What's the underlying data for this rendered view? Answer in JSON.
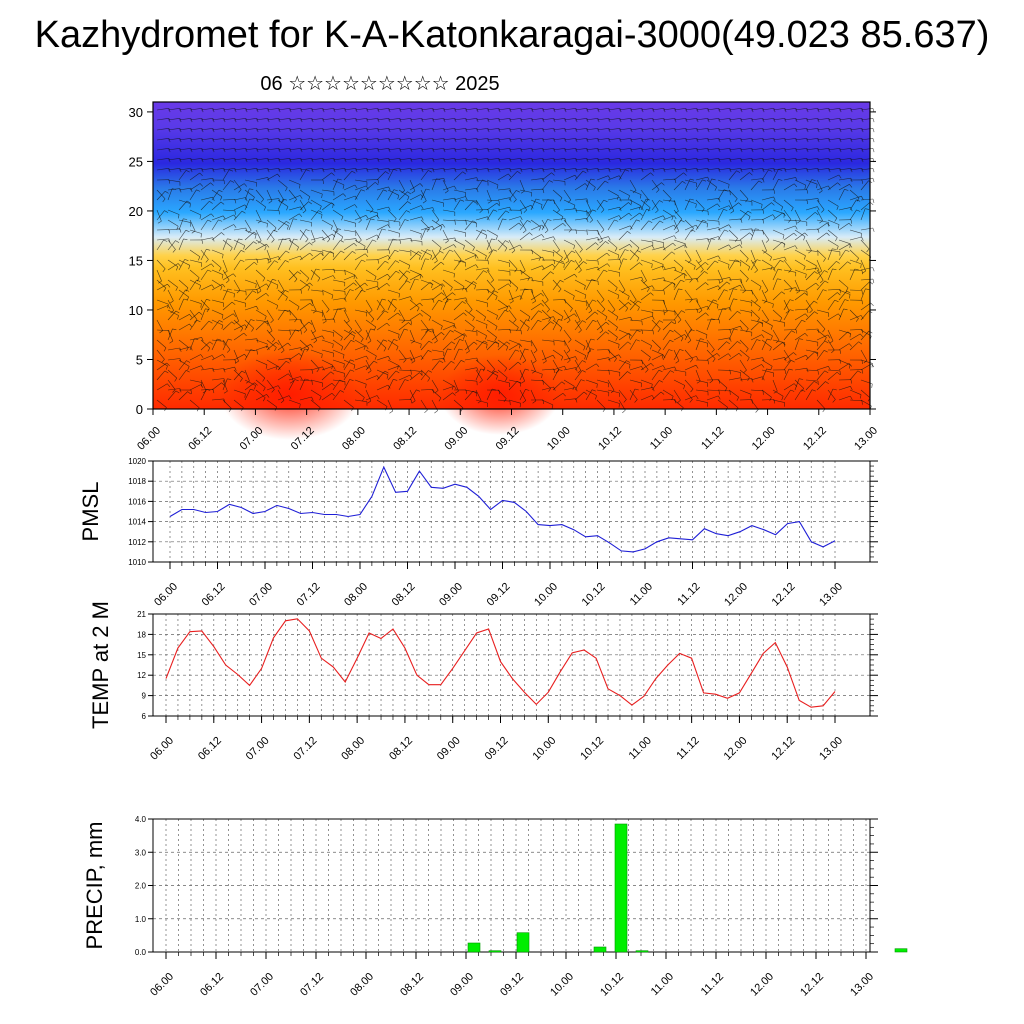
{
  "header": {
    "title": "Kazhydromet for K-A-Katonkaragai-3000(49.023 85.637)",
    "subtitle": "06 ☆☆☆☆☆☆☆☆☆ 2025"
  },
  "chart_data": [
    {
      "type": "heatmap",
      "title": "Kazhydromet for K-A-Katonkaragai-3000(49.023 85.637)",
      "subtitle": "06 ☆☆☆☆☆☆☆☆☆ 2025",
      "x_ticks": [
        "06.00",
        "06.12",
        "07.00",
        "07.12",
        "08.00",
        "08.12",
        "09.00",
        "09.12",
        "10.00",
        "10.12",
        "11.00",
        "11.12",
        "12.00",
        "12.12",
        "13.00"
      ],
      "y_ticks": [
        0,
        5,
        10,
        15,
        20,
        25,
        30
      ],
      "ylim": [
        0,
        31
      ],
      "colors": {
        "warm_low": "#ff2a00",
        "orange": "#ff9a00",
        "yellow": "#ffd24a",
        "light_blue": "#d8ecf8",
        "cyan": "#2aa8ff",
        "blue": "#2a28e0",
        "violet": "#6a3ae8"
      },
      "overlay": "wind barbs"
    },
    {
      "type": "line",
      "ylabel": "PMSL",
      "x_ticks": [
        "06.00",
        "06.12",
        "07.00",
        "07.12",
        "08.00",
        "08.12",
        "09.00",
        "09.12",
        "10.00",
        "10.12",
        "11.00",
        "11.12",
        "12.00",
        "12.12",
        "13.00"
      ],
      "y_ticks": [
        1010,
        1012,
        1014,
        1016,
        1018,
        1020
      ],
      "ylim": [
        1010,
        1020
      ],
      "color": "#1f1fd6",
      "values": [
        1014.5,
        1015.2,
        1015.2,
        1014.9,
        1015.0,
        1015.7,
        1015.4,
        1014.8,
        1015.0,
        1015.6,
        1015.3,
        1014.8,
        1014.9,
        1014.7,
        1014.7,
        1014.5,
        1014.7,
        1016.5,
        1019.4,
        1016.9,
        1017.0,
        1019.0,
        1017.4,
        1017.3,
        1017.7,
        1017.4,
        1016.5,
        1015.2,
        1016.1,
        1015.9,
        1015.0,
        1013.7,
        1013.6,
        1013.7,
        1013.2,
        1012.5,
        1012.6,
        1011.9,
        1011.1,
        1011.0,
        1011.3,
        1012.0,
        1012.4,
        1012.3,
        1012.2,
        1013.3,
        1012.8,
        1012.6,
        1013.0,
        1013.6,
        1013.2,
        1012.7,
        1013.8,
        1014.0,
        1012.0,
        1011.5,
        1012.1
      ]
    },
    {
      "type": "line",
      "ylabel": "TEMP at 2 M",
      "x_ticks": [
        "06.00",
        "06.12",
        "07.00",
        "07.12",
        "08.00",
        "08.12",
        "09.00",
        "09.12",
        "10.00",
        "10.12",
        "11.00",
        "11.12",
        "12.00",
        "12.12",
        "13.00"
      ],
      "y_ticks": [
        6,
        9,
        12,
        15,
        18,
        21
      ],
      "ylim": [
        6,
        21
      ],
      "color": "#e81f1f",
      "values": [
        11.5,
        16.0,
        18.4,
        18.5,
        16.2,
        13.5,
        12.1,
        10.5,
        13.0,
        17.5,
        20.0,
        20.3,
        18.5,
        14.5,
        13.2,
        11.0,
        14.5,
        18.2,
        17.4,
        18.8,
        16.0,
        12.0,
        10.6,
        10.6,
        13.0,
        15.6,
        18.2,
        18.8,
        14.0,
        11.5,
        9.5,
        7.7,
        9.5,
        12.5,
        15.3,
        15.7,
        14.5,
        10.0,
        9.0,
        7.6,
        8.9,
        11.5,
        13.5,
        15.2,
        14.5,
        9.4,
        9.2,
        8.6,
        9.4,
        12.3,
        15.2,
        16.8,
        13.2,
        8.3,
        7.3,
        7.5,
        9.6
      ]
    },
    {
      "type": "bar",
      "ylabel": "PRECIP, mm",
      "x_ticks": [
        "06.00",
        "06.12",
        "07.00",
        "07.12",
        "08.00",
        "08.12",
        "09.00",
        "09.12",
        "10.00",
        "10.12",
        "11.00",
        "11.12",
        "12.00",
        "12.12",
        "13.00"
      ],
      "y_ticks": [
        "0.0",
        "1.0",
        "2.0",
        "3.0",
        "4.0"
      ],
      "ylim": [
        0,
        4
      ],
      "color": "#00ee00",
      "bars": [
        {
          "x": 0.44,
          "value": 0.27
        },
        {
          "x": 0.47,
          "value": 0.04
        },
        {
          "x": 0.51,
          "value": 0.58
        },
        {
          "x": 0.62,
          "value": 0.15
        },
        {
          "x": 0.65,
          "value": 3.85
        },
        {
          "x": 0.68,
          "value": 0.04
        },
        {
          "x": 1.05,
          "value": 0.1
        }
      ]
    }
  ]
}
